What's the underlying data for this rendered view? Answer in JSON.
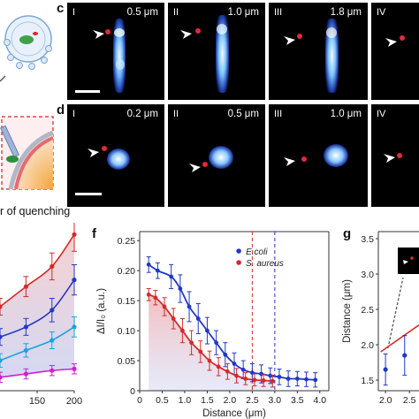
{
  "panels": {
    "c": {
      "letter": "c",
      "tiles": [
        {
          "roman": "I",
          "dist": "0.5 μm"
        },
        {
          "roman": "II",
          "dist": "1.0 μm"
        },
        {
          "roman": "III",
          "dist": "1.8 μm"
        },
        {
          "roman": "IV",
          "dist": ""
        }
      ]
    },
    "d": {
      "letter": "d",
      "tiles": [
        {
          "roman": "I",
          "dist": "0.2 μm"
        },
        {
          "roman": "II",
          "dist": "0.5 μm"
        },
        {
          "roman": "III",
          "dist": "1.0 μm"
        },
        {
          "roman": "IV",
          "dist": ""
        }
      ]
    },
    "schematic_caption": "r of quenching",
    "f": {
      "letter": "f"
    },
    "g": {
      "letter": "g"
    }
  },
  "colors": {
    "ecoli": "#2238c4",
    "saureus": "#d42a2a",
    "cyan": "#1aa3e0",
    "magenta": "#d21ed0"
  },
  "chart_data": [
    {
      "type": "line",
      "panel": "e (partial)",
      "xticks": [
        150,
        200
      ],
      "xlim": [
        100,
        200
      ],
      "ylim": [
        0,
        1
      ],
      "series": [
        {
          "color": "#d42a2a",
          "x": [
            100,
            135,
            170,
            200
          ],
          "y": [
            0.5,
            0.62,
            0.74,
            0.93
          ],
          "err": [
            0.05,
            0.06,
            0.08,
            0.1
          ]
        },
        {
          "color": "#2238c4",
          "x": [
            100,
            135,
            170,
            200
          ],
          "y": [
            0.32,
            0.38,
            0.48,
            0.66
          ],
          "err": [
            0.05,
            0.05,
            0.07,
            0.09
          ]
        },
        {
          "color": "#1aa3e0",
          "x": [
            100,
            135,
            170,
            200
          ],
          "y": [
            0.18,
            0.24,
            0.3,
            0.38
          ],
          "err": [
            0.04,
            0.04,
            0.05,
            0.06
          ]
        },
        {
          "color": "#d21ed0",
          "x": [
            100,
            135,
            170,
            200
          ],
          "y": [
            0.08,
            0.1,
            0.12,
            0.13
          ],
          "err": [
            0.03,
            0.03,
            0.03,
            0.03
          ]
        }
      ]
    },
    {
      "type": "line",
      "panel": "f",
      "xlabel": "Distance (μm)",
      "ylabel": "ΔI/I₀ (a.u.)",
      "xticks": [
        "0",
        "0.5",
        "1.0",
        "1.5",
        "2.0",
        "2.5",
        "3.0",
        "3.5",
        "4.0"
      ],
      "yticks": [
        "0",
        "0.05",
        "0.10",
        "0.15",
        "0.20",
        "0.25"
      ],
      "xlim": [
        0,
        4.2
      ],
      "ylim": [
        0,
        0.265
      ],
      "legend": [
        "E.coli",
        "S. aureus"
      ],
      "legend_position": "top-right",
      "vlines": [
        {
          "x": 2.5,
          "color": "#d42a2a"
        },
        {
          "x": 3.0,
          "color": "#2238c4"
        }
      ],
      "series": [
        {
          "name": "E.coli",
          "color": "#2238c4",
          "x": [
            0.2,
            0.4,
            0.7,
            0.9,
            1.1,
            1.3,
            1.5,
            1.7,
            1.9,
            2.1,
            2.3,
            2.5,
            2.7,
            2.9,
            3.1,
            3.3,
            3.5,
            3.7,
            3.9
          ],
          "y": [
            0.21,
            0.2,
            0.19,
            0.17,
            0.14,
            0.12,
            0.1,
            0.08,
            0.06,
            0.045,
            0.035,
            0.03,
            0.028,
            0.025,
            0.023,
            0.02,
            0.02,
            0.019,
            0.018
          ],
          "err": [
            0.013,
            0.013,
            0.02,
            0.023,
            0.025,
            0.025,
            0.022,
            0.02,
            0.02,
            0.018,
            0.015,
            0.015,
            0.015,
            0.013,
            0.013,
            0.013,
            0.012,
            0.012,
            0.012
          ]
        },
        {
          "name": "S. aureus",
          "color": "#d42a2a",
          "x": [
            0.2,
            0.35,
            0.55,
            0.75,
            0.95,
            1.15,
            1.35,
            1.55,
            1.75,
            1.95,
            2.15,
            2.35,
            2.55,
            2.75,
            2.95
          ],
          "y": [
            0.16,
            0.155,
            0.14,
            0.12,
            0.1,
            0.08,
            0.065,
            0.05,
            0.04,
            0.032,
            0.025,
            0.02,
            0.018,
            0.017,
            0.016
          ],
          "err": [
            0.01,
            0.012,
            0.015,
            0.017,
            0.02,
            0.02,
            0.018,
            0.016,
            0.015,
            0.013,
            0.012,
            0.01,
            0.01,
            0.01,
            0.01
          ]
        }
      ]
    },
    {
      "type": "line",
      "panel": "g",
      "ylabel": "Distance (μm)",
      "yticks": [
        "1.5",
        "2.0",
        "2.5",
        "3.0",
        "3.5"
      ],
      "ylim": [
        1.35,
        3.6
      ],
      "xticks": [
        "2.0",
        "2.5"
      ],
      "series": [
        {
          "color": "#2238c4",
          "x": [
            2.0,
            2.4
          ],
          "y": [
            1.65,
            1.85
          ],
          "err": [
            0.22,
            0.28
          ]
        }
      ],
      "fit_line": {
        "color": "#d42a2a",
        "x": [
          1.9,
          2.7
        ],
        "y": [
          1.9,
          2.28
        ]
      }
    }
  ]
}
